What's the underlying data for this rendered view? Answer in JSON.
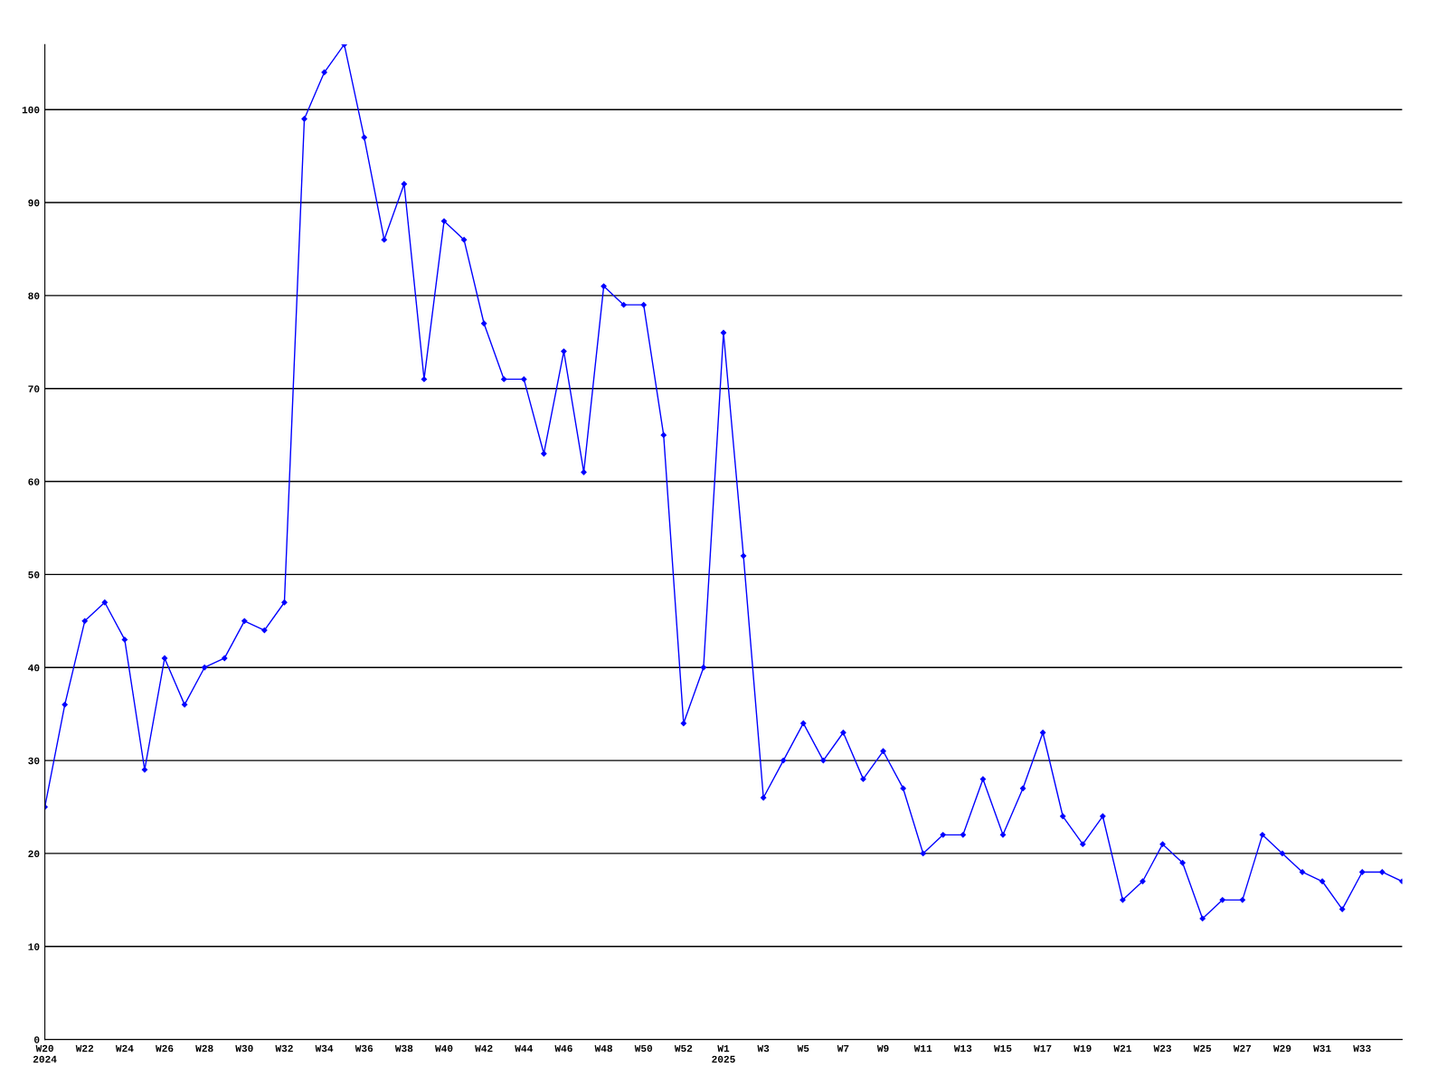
{
  "chart_data": {
    "type": "line",
    "categories": [
      "W20\n2024",
      null,
      "W22",
      null,
      "W24",
      null,
      "W26",
      null,
      "W28",
      null,
      "W30",
      null,
      "W32",
      null,
      "W34",
      null,
      "W36",
      null,
      "W38",
      null,
      "W40",
      null,
      "W42",
      null,
      "W44",
      null,
      "W46",
      null,
      "W48",
      null,
      "W50",
      null,
      "W52",
      null,
      "W1\n2025",
      null,
      "W3",
      null,
      "W5",
      null,
      "W7",
      null,
      "W9",
      null,
      "W11",
      null,
      "W13",
      null,
      "W15",
      null,
      "W17",
      null,
      "W19",
      null,
      "W21",
      null,
      "W23",
      null,
      "W25",
      null,
      "W27",
      null,
      "W29",
      null,
      "W31",
      null,
      "W33",
      null,
      null
    ],
    "series": [
      {
        "color": "#0000ff",
        "values": [
          25,
          36,
          45,
          47,
          43,
          29,
          41,
          36,
          40,
          41,
          45,
          44,
          47,
          99,
          104,
          107,
          97,
          86,
          92,
          71,
          88,
          86,
          77,
          71,
          71,
          63,
          74,
          61,
          81,
          79,
          79,
          65,
          34,
          40,
          76,
          52,
          26,
          30,
          34,
          30,
          33,
          28,
          31,
          27,
          20,
          22,
          22,
          28,
          22,
          27,
          33,
          24,
          21,
          24,
          15,
          17,
          21,
          19,
          13,
          15,
          15,
          22,
          20,
          18,
          17,
          14,
          18,
          18,
          17
        ]
      }
    ],
    "ylim": [
      0,
      107
    ],
    "yticks": [
      0,
      10,
      20,
      30,
      40,
      50,
      60,
      70,
      80,
      90,
      100
    ],
    "grid": "y",
    "marker": "diamond",
    "line_style": "solid",
    "legend": false
  }
}
